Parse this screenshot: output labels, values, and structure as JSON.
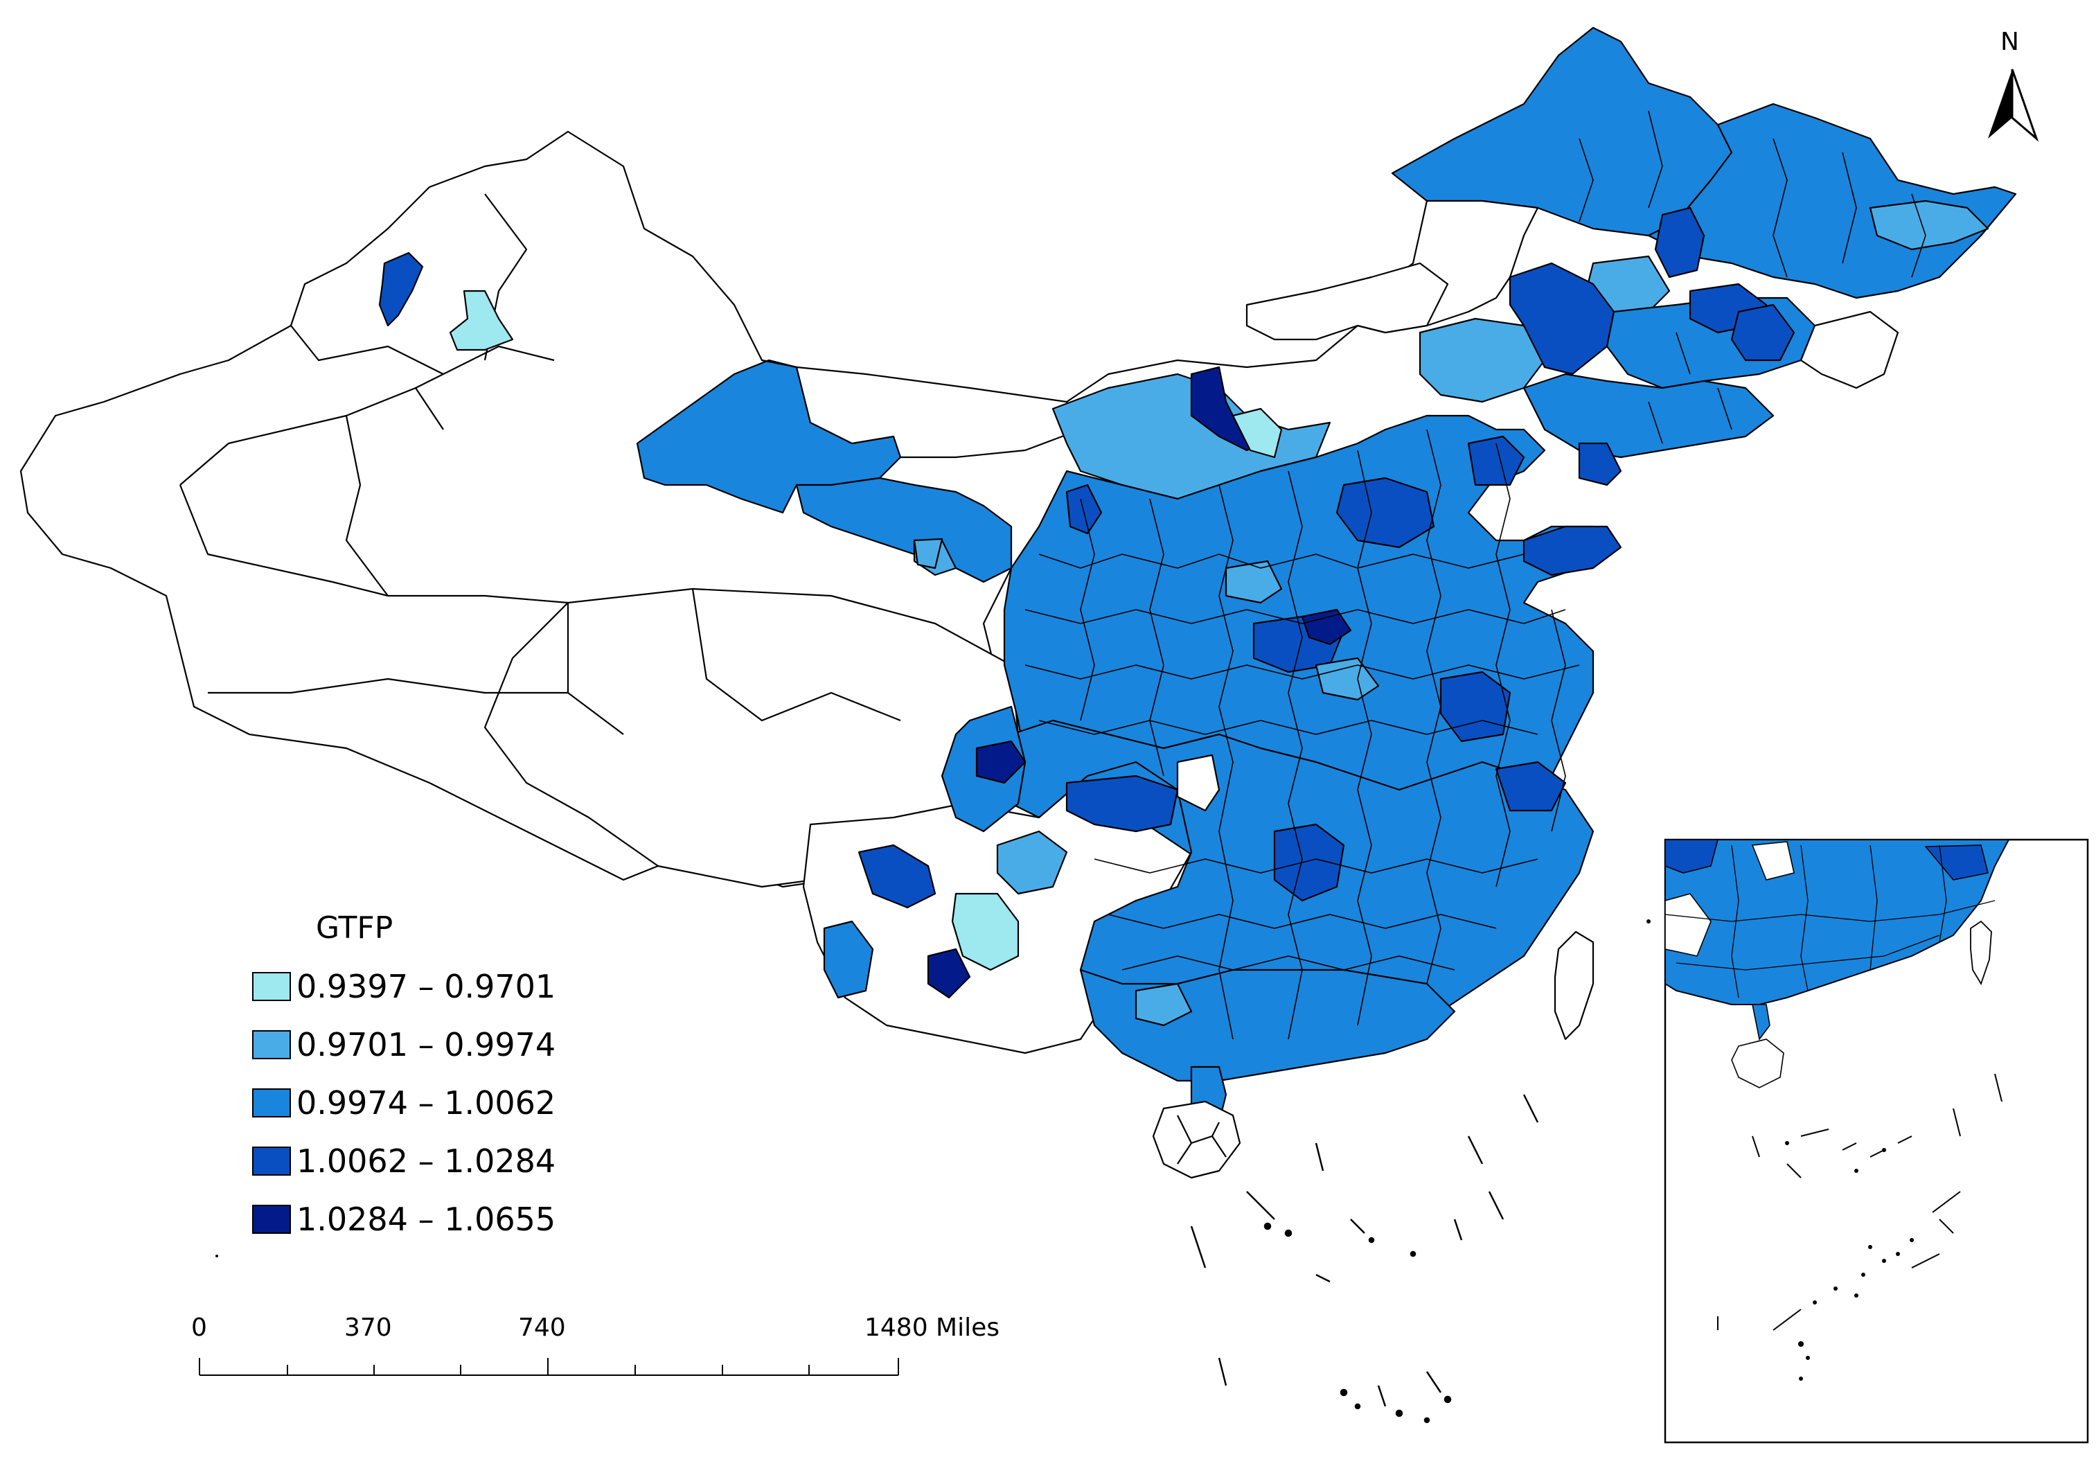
{
  "legend": {
    "title": "GTFP",
    "classes": [
      {
        "range": "0.9397 – 0.9701",
        "color": "#9ee8f0"
      },
      {
        "range": "0.9701 – 0.9974",
        "color": "#4aace6"
      },
      {
        "range": "0.9974 – 1.0062",
        "color": "#1a85dc"
      },
      {
        "range": "1.0062 – 1.0284",
        "color": "#0a4fc2"
      },
      {
        "range": "1.0284 – 1.0655",
        "color": "#031b8a"
      }
    ],
    "no_data_color": "#ffffff"
  },
  "scale_bar": {
    "labels": [
      "0",
      "370",
      "740",
      "1480 Miles"
    ]
  },
  "north_arrow": {
    "label": "N",
    "icon": "north-arrow-icon"
  },
  "inset": {
    "icon": "south-china-sea-inset"
  }
}
